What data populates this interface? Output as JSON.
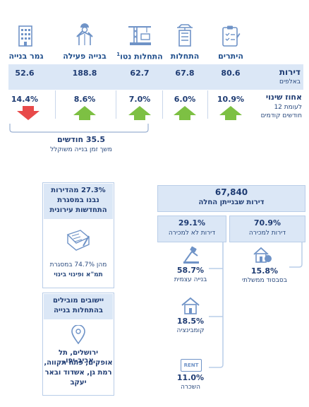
{
  "header": {
    "cols": [
      {
        "key": "permits",
        "label": "היתרים",
        "icon": "permit-clipboard-icon",
        "value": "80.6",
        "change": "10.9%",
        "direction": "up"
      },
      {
        "key": "starts",
        "label": "התחלות",
        "icon": "crane-building-icon",
        "value": "67.8",
        "change": "6.0%",
        "direction": "up"
      },
      {
        "key": "net_starts",
        "label": "התחלות נטו",
        "label_sup": "1",
        "icon": "crane-hook-icon",
        "value": "62.7",
        "change": "7.0%",
        "direction": "up"
      },
      {
        "key": "active",
        "label": "בנייה פעילה",
        "icon": "worker-icon",
        "value": "188.8",
        "change": "8.6%",
        "direction": "up"
      },
      {
        "key": "completed",
        "label": "גמר בנייה",
        "icon": "building-icon",
        "value": "52.6",
        "change": "14.4%",
        "direction": "down"
      }
    ]
  },
  "rows": {
    "units_title": "דירות",
    "units_sub": "באלפים",
    "change_title": "אחוז שינוי",
    "change_sub1": "לעומת 12",
    "change_sub2": "חודשים קודמים"
  },
  "duration": {
    "value": "35.5 חודשים",
    "label": "משך זמן בנייה משוקלל"
  },
  "under_construction": {
    "total": "67,840",
    "total_label": "דירות שבנייתן החלה",
    "for_sale": {
      "pct": "70.9%",
      "label": "דירות למכירה",
      "sub_pct": "15.8%",
      "sub_label": "בסבסוד ממשלתי"
    },
    "not_for_sale": {
      "pct": "29.1%",
      "label": "דירות לא למכירה",
      "items": [
        {
          "pct": "58.7%",
          "label": "בנייה עצמית",
          "icon": "self-build-icon"
        },
        {
          "pct": "18.5%",
          "label": "קומבינציה",
          "icon": "combination-house-icon"
        },
        {
          "pct": "11.0%",
          "label": "השכרה",
          "icon": "rent-sign-icon",
          "badge": "RENT"
        }
      ]
    }
  },
  "urban_renewal": {
    "line1": "27.3% מהדירות",
    "line2": "נבנו במסגרת",
    "line3": "התחדשות עירונית",
    "sub1": "מהן 74.7% במסגרת",
    "sub2": "תמ\"א ופינוי בינוי"
  },
  "leading": {
    "title1": "יישובים מובילים",
    "title2": "בהתחלות בנייה",
    "lines": [
      "ירושלים, תל אביב-יפו,",
      "אופקים, פתח תקווה,",
      "רמת גן, אשדוד ובאר",
      "יעקב"
    ]
  },
  "colors": {
    "up": "#7dc043",
    "down": "#e84a4a",
    "band": "#dbe7f6",
    "navy": "#1f3c73"
  }
}
